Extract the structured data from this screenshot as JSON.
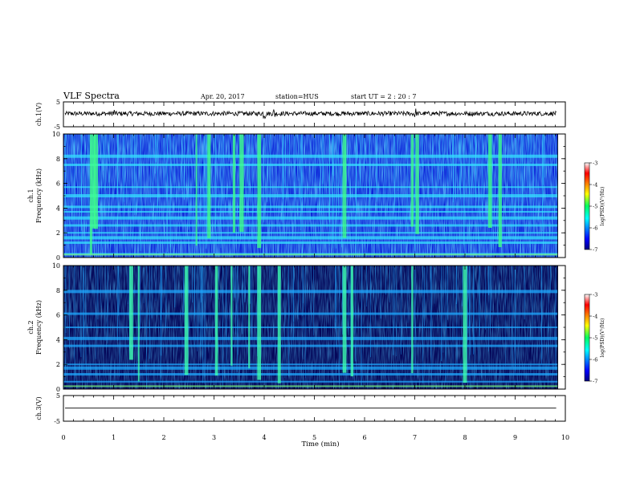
{
  "header": {
    "title": "VLF Spectra",
    "date": "Apr. 20, 2017",
    "station": "station=HUS",
    "start_ut": "start UT =  2 : 20 : 7"
  },
  "chart_data": [
    {
      "type": "line",
      "name": "ch1-waveform",
      "ylabel": "ch.1(V)",
      "ylim": [
        -5,
        5
      ],
      "yticks": [
        "5",
        "-5"
      ],
      "xlim": [
        0,
        10
      ],
      "signal": "noisy trace centered slightly above zero, amplitude about 1 V, spikes near 1.0, 4.0, 4.2, 7.0 min"
    },
    {
      "type": "heatmap",
      "name": "ch1-spectrogram",
      "ylabel": "ch.1\nFrequency (kHz)",
      "ylim": [
        0,
        10
      ],
      "yticks": [
        "0",
        "2",
        "4",
        "6",
        "8",
        "10"
      ],
      "xlim": [
        0,
        9.85
      ],
      "colorbar": {
        "label": "log(PSD)(V²/Hz)",
        "ticks": [
          "-3",
          "-4",
          "-5",
          "-6",
          "-7"
        ],
        "range": [
          -7,
          -3
        ]
      },
      "bright_bands_khz": [
        0.3,
        1.2,
        1.6,
        2.0,
        2.6,
        3.2,
        3.7,
        4.1,
        5.0,
        5.7,
        7.5,
        8.2
      ],
      "burst_times_min": [
        0.55,
        0.6,
        0.65,
        2.65,
        2.9,
        3.4,
        3.55,
        3.9,
        5.6,
        6.95,
        7.05,
        8.5,
        8.7
      ]
    },
    {
      "type": "heatmap",
      "name": "ch2-spectrogram",
      "ylabel": "ch.2\nFrequency (kHz)",
      "ylim": [
        0,
        10
      ],
      "yticks": [
        "0",
        "2",
        "4",
        "6",
        "8",
        "10"
      ],
      "xlim": [
        0,
        9.85
      ],
      "colorbar": {
        "label": "log(PSD)(V²/Hz)",
        "ticks": [
          "-3",
          "-4",
          "-5",
          "-6",
          "-7"
        ],
        "range": [
          -7,
          -3
        ]
      },
      "bright_bands_khz": [
        0.6,
        1.2,
        1.7,
        2.0,
        3.5,
        4.1,
        5.0,
        6.1,
        7.9
      ],
      "burst_times_min": [
        1.35,
        1.5,
        2.45,
        3.05,
        3.35,
        3.7,
        3.9,
        4.3,
        5.6,
        5.75,
        6.95,
        8.0
      ]
    },
    {
      "type": "line",
      "name": "ch3-waveform",
      "ylabel": "ch.3(V)",
      "ylim": [
        -5,
        5
      ],
      "yticks": [
        "5",
        "-5"
      ],
      "xlim": [
        0,
        10
      ],
      "signal": "flat line at about 0 V"
    }
  ],
  "xaxis": {
    "label": "Time (min)",
    "range": [
      0,
      10
    ],
    "ticks": [
      "0",
      "1",
      "2",
      "3",
      "4",
      "5",
      "6",
      "7",
      "8",
      "9",
      "10"
    ]
  }
}
